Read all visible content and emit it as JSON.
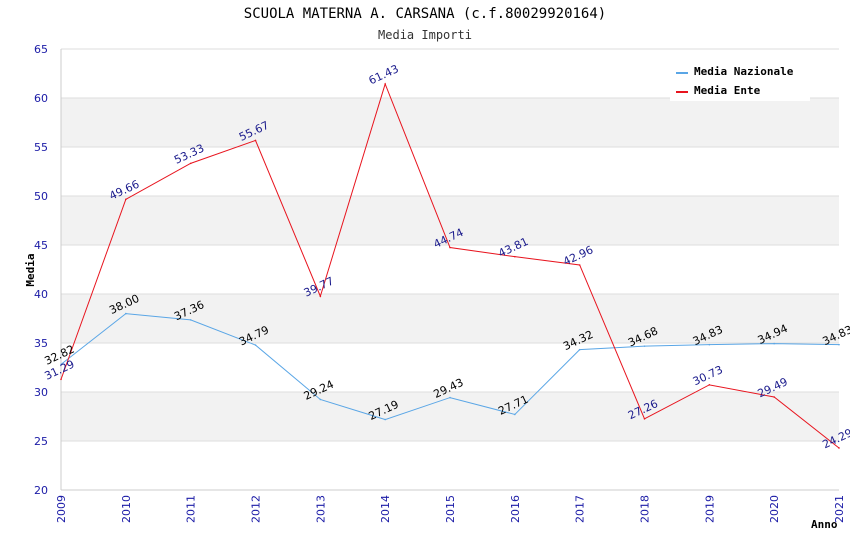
{
  "chart_data": {
    "type": "line",
    "title": "SCUOLA MATERNA A. CARSANA (c.f.80029920164)",
    "subtitle": "Media Importi",
    "xlabel": "Anno",
    "ylabel": "Media",
    "ylim": [
      20,
      65
    ],
    "yticks": [
      "20",
      "25",
      "30",
      "35",
      "40",
      "45",
      "50",
      "55",
      "60",
      "65"
    ],
    "categories": [
      "2009",
      "2010",
      "2011",
      "2012",
      "2013",
      "2014",
      "2015",
      "2016",
      "2017",
      "2018",
      "2019",
      "2020",
      "2021"
    ],
    "legend_position": "top-right",
    "series": [
      {
        "name": "Media Nazionale",
        "color": "#5aa6e6",
        "label_color": "#000000",
        "values": [
          32.82,
          38.0,
          37.36,
          34.79,
          29.24,
          27.19,
          29.43,
          27.71,
          34.32,
          34.68,
          34.83,
          34.94,
          34.83
        ],
        "labels": [
          "32.82",
          "38.00",
          "37.36",
          "34.79",
          "29.24",
          "27.19",
          "29.43",
          "27.71",
          "34.32",
          "34.68",
          "34.83",
          "34.94",
          "34.83"
        ]
      },
      {
        "name": "Media Ente",
        "color": "#e8141e",
        "label_color": "#1a1a8c",
        "values": [
          31.29,
          49.66,
          53.33,
          55.67,
          39.77,
          61.43,
          44.74,
          43.81,
          42.96,
          27.26,
          30.73,
          29.49,
          24.29
        ],
        "labels": [
          "31.29",
          "49.66",
          "53.33",
          "55.67",
          "39.77",
          "61.43",
          "44.74",
          "43.81",
          "42.96",
          "27.26",
          "30.73",
          "29.49",
          "24.29"
        ]
      }
    ]
  }
}
